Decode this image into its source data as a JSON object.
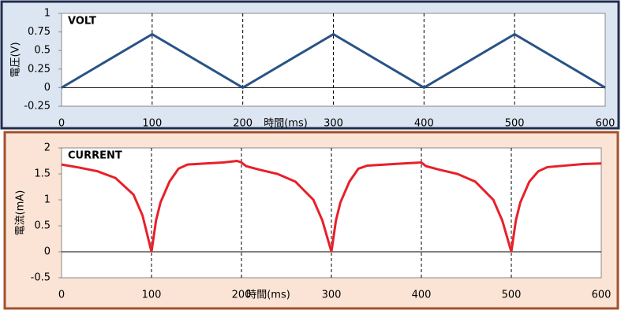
{
  "chart_data": [
    {
      "type": "line",
      "title": "VOLT",
      "x_label": "時間(ms)",
      "y_label": "電圧(V)",
      "x": [
        0,
        100,
        200,
        300,
        400,
        500,
        600
      ],
      "values": [
        0,
        0.72,
        0,
        0.72,
        0,
        0.72,
        0
      ],
      "color": "#2a5286",
      "xlim": [
        0,
        600
      ],
      "xticks": [
        0,
        100,
        200,
        300,
        400,
        500,
        600
      ],
      "ylim": [
        -0.25,
        1
      ],
      "yticks": [
        1,
        0.75,
        0.5,
        0.25,
        0,
        -0.25
      ]
    },
    {
      "type": "line",
      "title": "CURRENT",
      "x_label": "時間(ms)",
      "y_label": "電流(mA)",
      "x": [
        0,
        20,
        40,
        60,
        80,
        90,
        100,
        105,
        110,
        120,
        130,
        140,
        160,
        180,
        195,
        200,
        205,
        220,
        240,
        260,
        280,
        290,
        300,
        305,
        310,
        320,
        330,
        340,
        360,
        380,
        400,
        405,
        420,
        440,
        460,
        480,
        490,
        500,
        505,
        510,
        520,
        530,
        540,
        560,
        580,
        600
      ],
      "values": [
        1.68,
        1.62,
        1.55,
        1.42,
        1.1,
        0.7,
        0,
        0.6,
        0.95,
        1.35,
        1.6,
        1.68,
        1.7,
        1.72,
        1.75,
        1.72,
        1.65,
        1.58,
        1.5,
        1.35,
        1.0,
        0.6,
        0,
        0.6,
        0.95,
        1.35,
        1.6,
        1.66,
        1.68,
        1.7,
        1.72,
        1.65,
        1.58,
        1.5,
        1.35,
        1.0,
        0.6,
        0,
        0.6,
        0.95,
        1.35,
        1.55,
        1.63,
        1.66,
        1.69,
        1.7
      ],
      "color": "#e8202a",
      "xlim": [
        0,
        600
      ],
      "xticks": [
        0,
        100,
        200,
        300,
        400,
        500,
        600
      ],
      "ylim": [
        -0.5,
        2
      ],
      "yticks": [
        2,
        1.5,
        1,
        0.5,
        0,
        -0.5
      ]
    }
  ]
}
